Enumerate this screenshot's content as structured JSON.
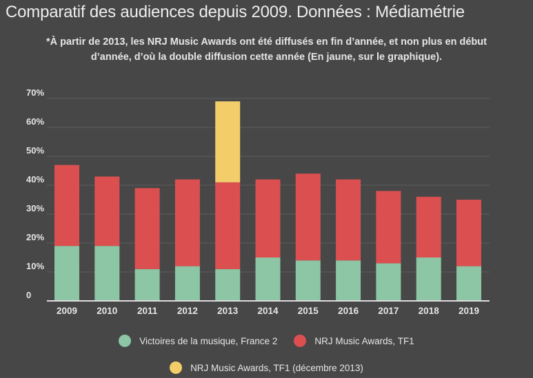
{
  "title": "Comparatif des audiences depuis 2009. Données : Médiamétrie",
  "subtitle": "*À partir de 2013, les NRJ Music Awards ont été diffusés en fin d’année, et non plus en début d’année, d’où la double diffusion cette année (En jaune, sur le graphique).",
  "colors": {
    "background": "#474747",
    "victoires": "#8cc6a4",
    "nrj": "#dc4f50",
    "nrj_dec": "#f2cd6a",
    "grid": "#5e5e5e",
    "axis": "#dcdcdc",
    "text": "#e6e6e6"
  },
  "chart_data": {
    "type": "bar",
    "stacked": true,
    "categories": [
      "2009",
      "2010",
      "2011",
      "2012",
      "2013",
      "2014",
      "2015",
      "2016",
      "2017",
      "2018",
      "2019"
    ],
    "series": [
      {
        "name": "Victoires de la musique, France 2",
        "color": "#8cc6a4",
        "values": [
          19,
          19,
          11,
          12,
          11,
          15,
          14,
          14,
          13,
          15,
          12
        ]
      },
      {
        "name": "NRJ Music Awards, TF1",
        "color": "#dc4f50",
        "values": [
          28,
          24,
          28,
          30,
          30,
          27,
          30,
          28,
          25,
          21,
          23
        ]
      },
      {
        "name": "NRJ Music Awards, TF1 (décembre 2013)",
        "color": "#f2cd6a",
        "values": [
          0,
          0,
          0,
          0,
          28,
          0,
          0,
          0,
          0,
          0,
          0
        ]
      }
    ],
    "y_ticks": [
      "0",
      "10%",
      "20%",
      "30%",
      "40%",
      "50%",
      "60%",
      "70%"
    ],
    "ylim": [
      0,
      70
    ],
    "grid": true,
    "legend_position": "bottom"
  }
}
